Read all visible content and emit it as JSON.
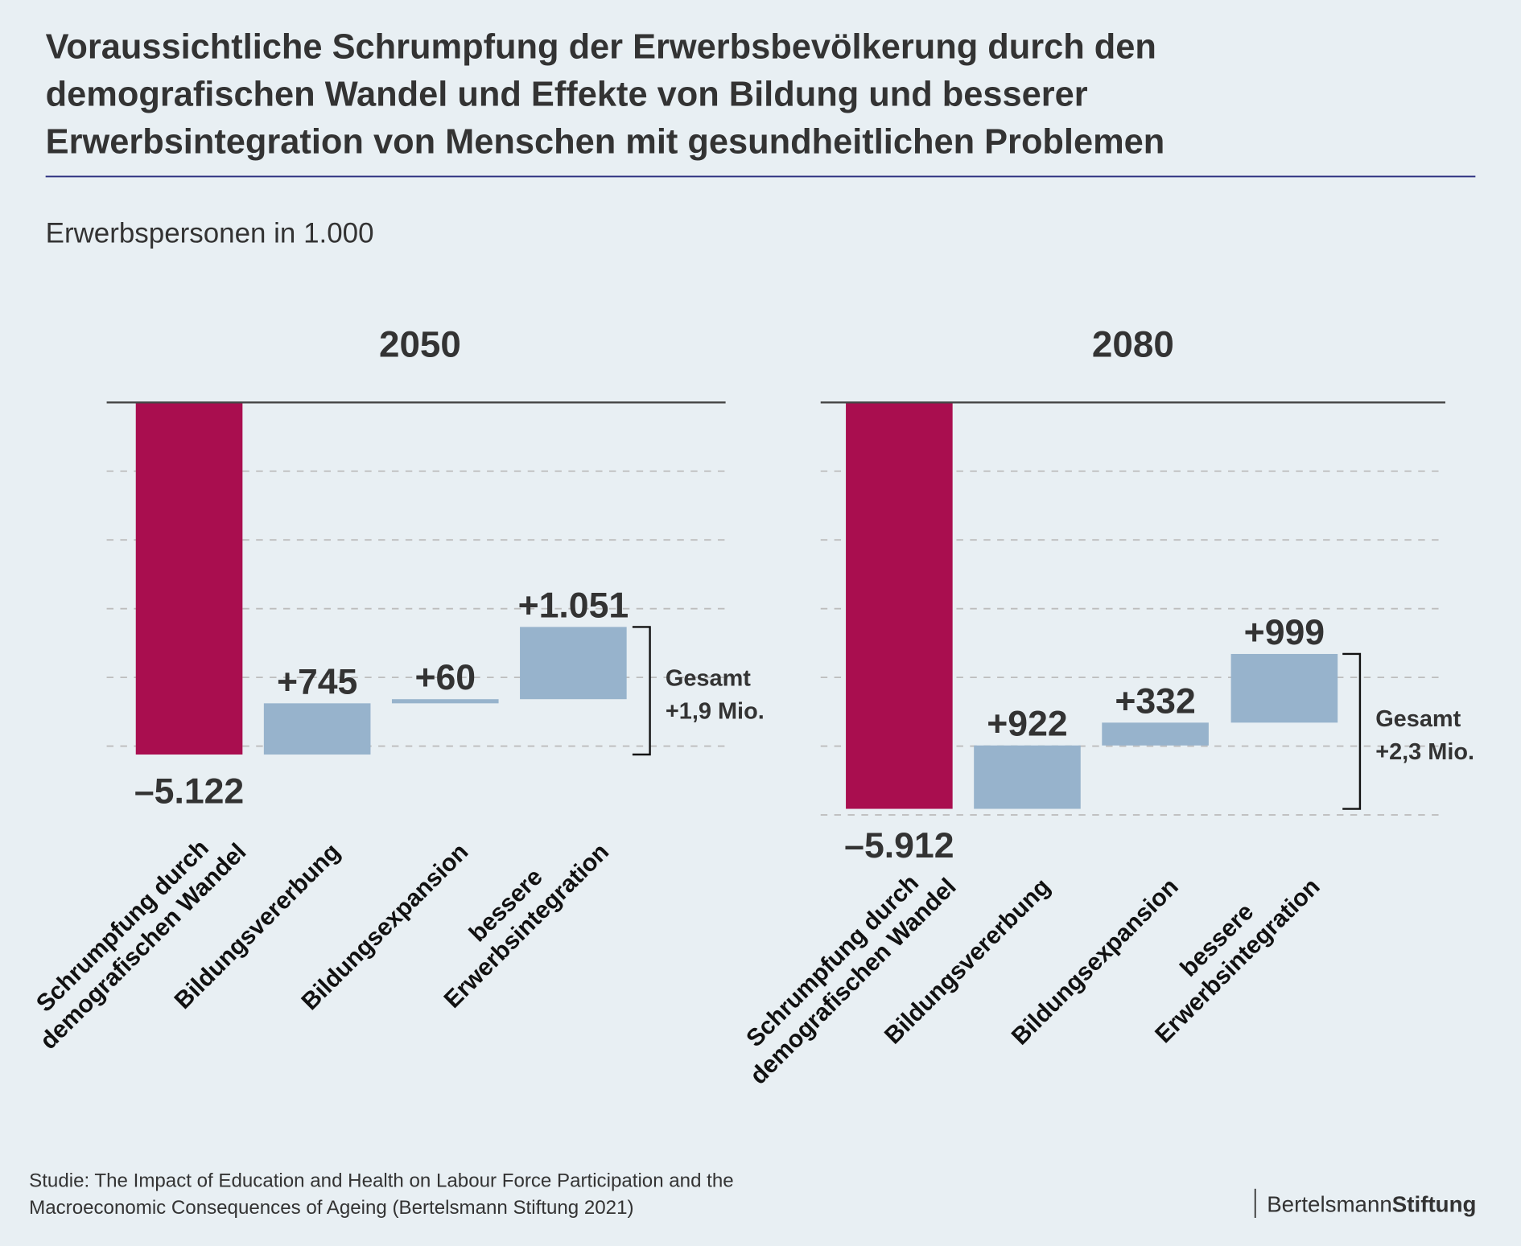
{
  "title_lines": [
    "Voraussichtliche Schrumpfung der Erwerbsbevölkerung durch den",
    "demografischen Wandel und Effekte von Bildung und besserer",
    "Erwerbsintegration von Menschen mit gesundheitlichen Problemen"
  ],
  "subtitle": "Erwerbspersonen in 1.000",
  "colors": {
    "background": "#e8eff3",
    "negative": "#a90e4f",
    "positive": "#97b3cc",
    "title_rule": "#2b2f7f"
  },
  "chart_data": [
    {
      "type": "bar",
      "subtype": "waterfall",
      "title": "2050",
      "categories": [
        [
          "Schrumpfung durch",
          "demografischen Wandel"
        ],
        [
          "Bildungsvererbung"
        ],
        [
          "Bildungsexpansion"
        ],
        [
          "bessere",
          "Erwerbsintegration"
        ]
      ],
      "values": [
        -5122,
        745,
        60,
        1051
      ],
      "value_labels": [
        "–5.122",
        "+745",
        "+60",
        "+1.051"
      ],
      "total_label": [
        "Gesamt",
        "+1,9 Mio."
      ],
      "ylim": [
        -5500,
        0
      ],
      "grid": true
    },
    {
      "type": "bar",
      "subtype": "waterfall",
      "title": "2080",
      "categories": [
        [
          "Schrumpfung durch",
          "demografischen Wandel"
        ],
        [
          "Bildungsvererbung"
        ],
        [
          "Bildungsexpansion"
        ],
        [
          "bessere",
          "Erwerbsintegration"
        ]
      ],
      "values": [
        -5912,
        922,
        332,
        999
      ],
      "value_labels": [
        "–5.912",
        "+922",
        "+332",
        "+999"
      ],
      "total_label": [
        "Gesamt",
        "+2,3 Mio."
      ],
      "ylim": [
        -6000,
        0
      ],
      "grid": true
    }
  ],
  "source_lines": [
    "Studie: The Impact of Education and Health on Labour Force Participation and the",
    "Macroeconomic Consequences of Ageing (Bertelsmann Stiftung 2021)"
  ],
  "logo": {
    "part1": "Bertelsmann",
    "part2": "Stiftung"
  }
}
